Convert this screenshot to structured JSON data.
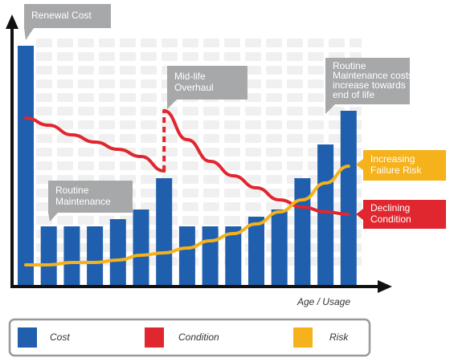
{
  "chart_data": {
    "type": "bar",
    "x_label": "Age / Usage",
    "categories": [
      null,
      null,
      null,
      null,
      null,
      null,
      null,
      null,
      null,
      null,
      null,
      null,
      null,
      null,
      null
    ],
    "ylim": [
      0,
      100
    ],
    "series": [
      {
        "name": "Cost",
        "type": "bar",
        "color": "#1f5fad",
        "values": [
          100,
          25,
          25,
          25,
          28,
          32,
          45,
          25,
          25,
          25,
          29,
          32,
          45,
          59,
          73
        ]
      },
      {
        "name": "Condition",
        "type": "line",
        "color": "#e0262e",
        "x": [
          0,
          1,
          2,
          3,
          4,
          5,
          6,
          6,
          7,
          8,
          9,
          10,
          11,
          12,
          13,
          14
        ],
        "values": [
          70,
          67,
          63,
          60,
          57,
          54,
          48,
          73,
          61,
          52,
          46,
          41,
          36,
          33,
          31,
          30
        ]
      },
      {
        "name": "Risk",
        "type": "line",
        "color": "#f5b21b",
        "values": [
          9,
          9,
          10,
          10,
          11,
          13,
          14,
          16,
          19,
          22,
          26,
          31,
          36,
          43,
          50
        ]
      }
    ],
    "annotations": [
      {
        "lines": [
          "Renewal Cost"
        ],
        "color": "#a7a8aa"
      },
      {
        "lines": [
          "Mid-life",
          "Overhaul"
        ],
        "color": "#a7a8aa"
      },
      {
        "lines": [
          "Routine",
          "Maintenance"
        ],
        "color": "#a7a8aa"
      },
      {
        "lines": [
          "Routine",
          "Maintenance costs",
          "increase towards",
          "end of life"
        ],
        "color": "#a7a8aa"
      },
      {
        "lines": [
          "Increasing",
          "Failure Risk"
        ],
        "color": "#f5b21b"
      },
      {
        "lines": [
          "Declining",
          "Condition"
        ],
        "color": "#e0262e"
      }
    ]
  }
}
